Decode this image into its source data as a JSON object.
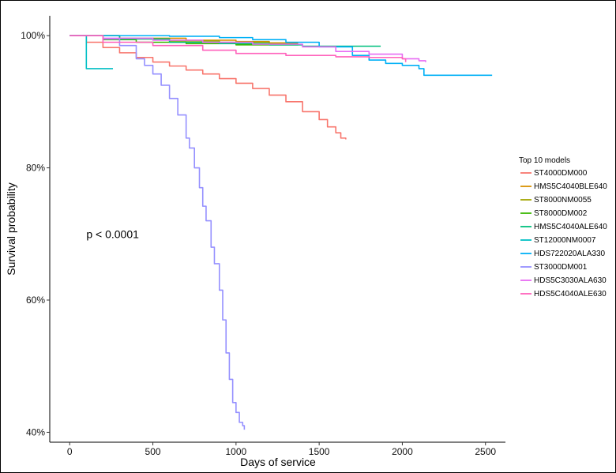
{
  "chart_data": {
    "type": "line",
    "title": "",
    "xlabel": "Days of service",
    "ylabel": "Survival probability",
    "xlim": [
      -120,
      2620
    ],
    "ylim": [
      0.385,
      1.03
    ],
    "x_ticks": [
      0,
      500,
      1000,
      1500,
      2000,
      2500
    ],
    "y_ticks": [
      {
        "value": 1.0,
        "label": "100%"
      },
      {
        "value": 0.8,
        "label": "80%"
      },
      {
        "value": 0.6,
        "label": "60%"
      },
      {
        "value": 0.4,
        "label": "40%"
      }
    ],
    "grid": false,
    "legend_placement": "right",
    "legend_title": "Top 10 models",
    "annotation": {
      "text": "p < 0.0001",
      "x": 100,
      "y": 0.7
    },
    "series": [
      {
        "name": "ST4000DM000",
        "color": "#F8766D",
        "points": [
          [
            0,
            1.0
          ],
          [
            100,
            0.99
          ],
          [
            200,
            0.982
          ],
          [
            300,
            0.974
          ],
          [
            400,
            0.967
          ],
          [
            500,
            0.96
          ],
          [
            600,
            0.954
          ],
          [
            700,
            0.948
          ],
          [
            800,
            0.942
          ],
          [
            900,
            0.935
          ],
          [
            1000,
            0.928
          ],
          [
            1100,
            0.92
          ],
          [
            1200,
            0.91
          ],
          [
            1300,
            0.9
          ],
          [
            1400,
            0.885
          ],
          [
            1500,
            0.873
          ],
          [
            1550,
            0.862
          ],
          [
            1600,
            0.853
          ],
          [
            1630,
            0.845
          ],
          [
            1660,
            0.843
          ]
        ]
      },
      {
        "name": "HMS5C4040BLE640",
        "color": "#D89000",
        "points": [
          [
            0,
            1.0
          ],
          [
            300,
            0.996
          ],
          [
            700,
            0.993
          ],
          [
            1000,
            0.991
          ],
          [
            1200,
            0.989
          ],
          [
            1370,
            0.988
          ]
        ]
      },
      {
        "name": "ST8000NM0055",
        "color": "#A3A500",
        "points": [
          [
            0,
            1.0
          ],
          [
            300,
            0.995
          ],
          [
            600,
            0.992
          ],
          [
            900,
            0.99
          ],
          [
            1200,
            0.988
          ],
          [
            1370,
            0.986
          ]
        ]
      },
      {
        "name": "ST8000DM002",
        "color": "#39B600",
        "points": [
          [
            0,
            1.0
          ],
          [
            200,
            0.994
          ],
          [
            400,
            0.99
          ],
          [
            700,
            0.988
          ],
          [
            1000,
            0.986
          ],
          [
            1370,
            0.985
          ]
        ]
      },
      {
        "name": "HMS5C4040ALE640",
        "color": "#00BF7D",
        "points": [
          [
            0,
            1.0
          ],
          [
            300,
            0.995
          ],
          [
            600,
            0.99
          ],
          [
            900,
            0.988
          ],
          [
            1200,
            0.986
          ],
          [
            1400,
            0.984
          ],
          [
            1870,
            0.984
          ]
        ]
      },
      {
        "name": "ST12000NM0007",
        "color": "#00BFC4",
        "points": [
          [
            0,
            1.0
          ],
          [
            100,
            0.993
          ],
          [
            100,
            0.95
          ],
          [
            260,
            0.95
          ]
        ]
      },
      {
        "name": "HDS722020ALA330",
        "color": "#00B0F6",
        "points": [
          [
            0,
            1.0
          ],
          [
            300,
            1.0
          ],
          [
            600,
            0.999
          ],
          [
            900,
            0.997
          ],
          [
            1100,
            0.994
          ],
          [
            1300,
            0.99
          ],
          [
            1500,
            0.983
          ],
          [
            1700,
            0.97
          ],
          [
            1800,
            0.963
          ],
          [
            1900,
            0.958
          ],
          [
            2000,
            0.955
          ],
          [
            2100,
            0.95
          ],
          [
            2130,
            0.94
          ],
          [
            2540,
            0.94
          ]
        ]
      },
      {
        "name": "ST3000DM001",
        "color": "#9590FF",
        "points": [
          [
            0,
            1.0
          ],
          [
            200,
            0.995
          ],
          [
            300,
            0.985
          ],
          [
            400,
            0.965
          ],
          [
            450,
            0.955
          ],
          [
            500,
            0.942
          ],
          [
            550,
            0.925
          ],
          [
            600,
            0.905
          ],
          [
            650,
            0.88
          ],
          [
            700,
            0.845
          ],
          [
            720,
            0.83
          ],
          [
            750,
            0.8
          ],
          [
            780,
            0.77
          ],
          [
            800,
            0.742
          ],
          [
            820,
            0.72
          ],
          [
            850,
            0.68
          ],
          [
            870,
            0.655
          ],
          [
            900,
            0.615
          ],
          [
            920,
            0.57
          ],
          [
            940,
            0.52
          ],
          [
            960,
            0.48
          ],
          [
            980,
            0.445
          ],
          [
            1000,
            0.43
          ],
          [
            1020,
            0.415
          ],
          [
            1040,
            0.41
          ],
          [
            1050,
            0.404
          ]
        ]
      },
      {
        "name": "HDS5C3030ALA630",
        "color": "#E76BF3",
        "points": [
          [
            0,
            1.0
          ],
          [
            200,
            0.996
          ],
          [
            500,
            0.993
          ],
          [
            800,
            0.99
          ],
          [
            1100,
            0.987
          ],
          [
            1400,
            0.983
          ],
          [
            1600,
            0.976
          ],
          [
            1800,
            0.972
          ],
          [
            2000,
            0.965
          ],
          [
            2100,
            0.962
          ],
          [
            2140,
            0.96
          ]
        ]
      },
      {
        "name": "HDS5C4040ALE630",
        "color": "#FF62BC",
        "points": [
          [
            0,
            1.0
          ],
          [
            200,
            0.99
          ],
          [
            500,
            0.985
          ],
          [
            800,
            0.978
          ],
          [
            1000,
            0.973
          ],
          [
            1300,
            0.97
          ],
          [
            1600,
            0.968
          ],
          [
            1800,
            0.967
          ],
          [
            2000,
            0.965
          ],
          [
            2020,
            0.96
          ]
        ]
      }
    ]
  }
}
